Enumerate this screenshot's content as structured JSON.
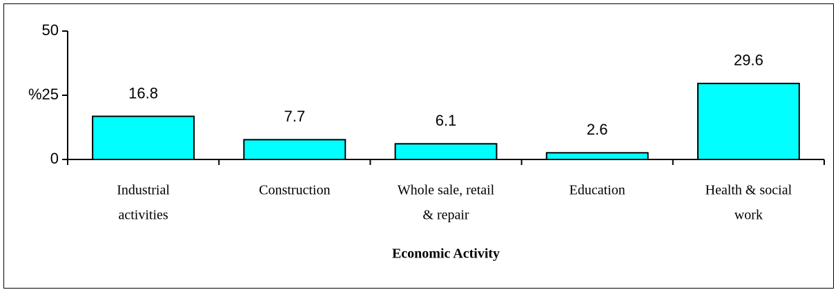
{
  "chart_data": {
    "type": "bar",
    "x_label": "Economic Activity",
    "categories": [
      [
        "Industrial",
        "activities"
      ],
      [
        "Construction"
      ],
      [
        "Whole sale, retail",
        "& repair"
      ],
      [
        "Education"
      ],
      [
        "Health & social",
        "work"
      ]
    ],
    "values": [
      16.8,
      7.7,
      6.1,
      2.6,
      29.6
    ],
    "color": "#00ffff",
    "ylim": [
      0,
      50
    ],
    "yticks": [
      0,
      {
        "value": 25,
        "label": "%25"
      },
      50
    ]
  }
}
